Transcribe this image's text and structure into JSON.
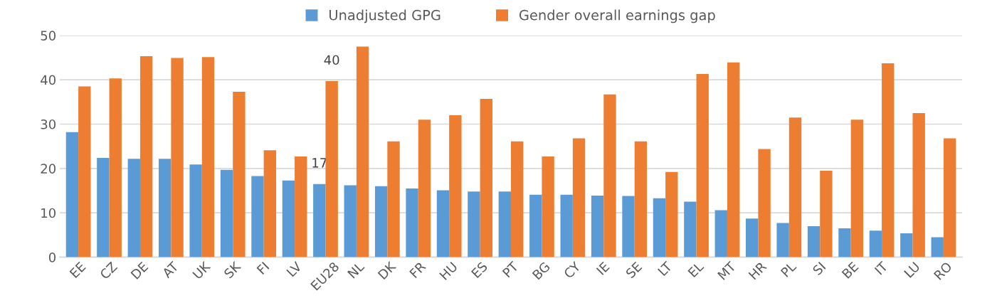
{
  "chart_data": {
    "type": "bar",
    "categories": [
      "EE",
      "CZ",
      "DE",
      "AT",
      "UK",
      "SK",
      "FI",
      "LV",
      "EU28",
      "NL",
      "DK",
      "FR",
      "HU",
      "ES",
      "PT",
      "BG",
      "CY",
      "IE",
      "SE",
      "LT",
      "EL",
      "MT",
      "HR",
      "PL",
      "SI",
      "BE",
      "IT",
      "LU",
      "RO"
    ],
    "series": [
      {
        "name": "Unadjusted GPG",
        "color": "#5b9bd5",
        "values": [
          28.2,
          22.4,
          22.2,
          22.2,
          20.9,
          19.7,
          18.3,
          17.3,
          16.5,
          16.2,
          16.0,
          15.5,
          15.1,
          14.8,
          14.8,
          14.1,
          14.1,
          13.9,
          13.8,
          13.3,
          12.5,
          10.6,
          8.7,
          7.7,
          7.0,
          6.5,
          6.0,
          5.4,
          4.5
        ],
        "value_labels": [
          null,
          null,
          null,
          null,
          null,
          null,
          null,
          null,
          "17",
          null,
          null,
          null,
          null,
          null,
          null,
          null,
          null,
          null,
          null,
          null,
          null,
          null,
          null,
          null,
          null,
          null,
          null,
          null,
          null
        ]
      },
      {
        "name": "Gender overall earnings gap",
        "color": "#ed7d31",
        "values": [
          38.5,
          40.3,
          45.3,
          44.9,
          45.1,
          37.3,
          24.1,
          22.7,
          39.7,
          47.5,
          26.1,
          31.0,
          32.0,
          35.7,
          26.1,
          22.7,
          26.8,
          36.7,
          26.1,
          19.2,
          41.3,
          43.9,
          24.4,
          31.5,
          19.5,
          31.0,
          43.7,
          32.5,
          26.8
        ],
        "value_labels": [
          null,
          null,
          null,
          null,
          null,
          null,
          null,
          null,
          "40",
          null,
          null,
          null,
          null,
          null,
          null,
          null,
          null,
          null,
          null,
          null,
          null,
          null,
          null,
          null,
          null,
          null,
          null,
          null,
          null
        ]
      }
    ],
    "ylim": [
      0,
      50
    ],
    "yticks": [
      0,
      10,
      20,
      30,
      40,
      50
    ],
    "grid": "y",
    "legend": "top"
  }
}
